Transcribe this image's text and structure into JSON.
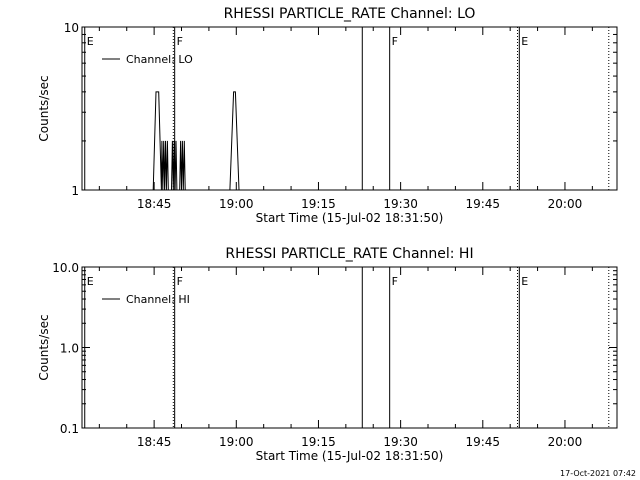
{
  "footer": {
    "timestamp": "17-Oct-2021 07:42"
  },
  "chart_data": [
    {
      "type": "line",
      "title": "RHESSI PARTICLE_RATE Channel: LO",
      "xlabel": "Start Time (15-Jul-02 18:31:50)",
      "ylabel": "Counts/sec",
      "yscale": "log",
      "ylim": [
        1,
        10
      ],
      "yticks": [
        "1",
        "10"
      ],
      "xlim": [
        "18:31:50",
        "20:09:30"
      ],
      "xticks": [
        "18:45",
        "19:00",
        "19:15",
        "19:30",
        "19:45",
        "20:00"
      ],
      "legend": {
        "position": "top-left",
        "entries": [
          "Channel: LO"
        ]
      },
      "series": [
        {
          "name": "Channel: LO",
          "points": [
            [
              "18:44:50",
              1.0
            ],
            [
              "18:45:20",
              4.0
            ],
            [
              "18:45:50",
              4.0
            ],
            [
              "18:46:20",
              1.0
            ],
            [
              "18:46:25",
              2.0
            ],
            [
              "18:46:35",
              1.0
            ],
            [
              "18:46:45",
              2.0
            ],
            [
              "18:46:55",
              1.0
            ],
            [
              "18:47:05",
              2.0
            ],
            [
              "18:47:15",
              1.0
            ],
            [
              "18:47:25",
              2.0
            ],
            [
              "18:47:35",
              1.0
            ],
            [
              "18:48:10",
              1.0
            ],
            [
              "18:48:20",
              2.0
            ],
            [
              "18:48:30",
              1.0
            ],
            [
              "18:48:40",
              2.0
            ],
            [
              "18:48:50",
              1.0
            ],
            [
              "18:49:00",
              2.0
            ],
            [
              "18:49:10",
              1.0
            ],
            [
              "18:49:40",
              1.0
            ],
            [
              "18:49:50",
              2.0
            ],
            [
              "18:50:00",
              1.0
            ],
            [
              "18:50:10",
              2.0
            ],
            [
              "18:50:20",
              1.0
            ],
            [
              "18:50:30",
              2.0
            ],
            [
              "18:50:40",
              1.0
            ],
            [
              "18:58:50",
              1.0
            ],
            [
              "18:59:30",
              4.0
            ],
            [
              "18:59:50",
              4.0
            ],
            [
              "19:00:30",
              1.0
            ]
          ]
        }
      ],
      "markers": [
        {
          "time": "18:32:20",
          "label": "E",
          "style": "solid"
        },
        {
          "time": "18:48:30",
          "label": "",
          "style": "dotted"
        },
        {
          "time": "18:48:45",
          "label": "F",
          "style": "solid"
        },
        {
          "time": "19:23:00",
          "label": "",
          "style": "solid"
        },
        {
          "time": "19:28:00",
          "label": "F",
          "style": "solid"
        },
        {
          "time": "19:51:20",
          "label": "",
          "style": "dotted"
        },
        {
          "time": "19:51:40",
          "label": "E",
          "style": "solid"
        },
        {
          "time": "20:08:00",
          "label": "",
          "style": "dotted"
        }
      ]
    },
    {
      "type": "line",
      "title": "RHESSI PARTICLE_RATE Channel: HI",
      "xlabel": "Start Time (15-Jul-02 18:31:50)",
      "ylabel": "Counts/sec",
      "yscale": "log",
      "ylim": [
        0.1,
        10
      ],
      "yticks": [
        "0.1",
        "1.0",
        "10.0"
      ],
      "xlim": [
        "18:31:50",
        "20:09:30"
      ],
      "xticks": [
        "18:45",
        "19:00",
        "19:15",
        "19:30",
        "19:45",
        "20:00"
      ],
      "legend": {
        "position": "top-left",
        "entries": [
          "Channel: HI"
        ]
      },
      "series": [
        {
          "name": "Channel: HI",
          "points": []
        }
      ],
      "markers": [
        {
          "time": "18:32:20",
          "label": "E",
          "style": "solid"
        },
        {
          "time": "18:48:30",
          "label": "",
          "style": "dotted"
        },
        {
          "time": "18:48:45",
          "label": "F",
          "style": "solid"
        },
        {
          "time": "19:23:00",
          "label": "",
          "style": "solid"
        },
        {
          "time": "19:28:00",
          "label": "F",
          "style": "solid"
        },
        {
          "time": "19:51:20",
          "label": "",
          "style": "dotted"
        },
        {
          "time": "19:51:40",
          "label": "E",
          "style": "solid"
        },
        {
          "time": "20:08:00",
          "label": "",
          "style": "dotted"
        }
      ]
    }
  ]
}
